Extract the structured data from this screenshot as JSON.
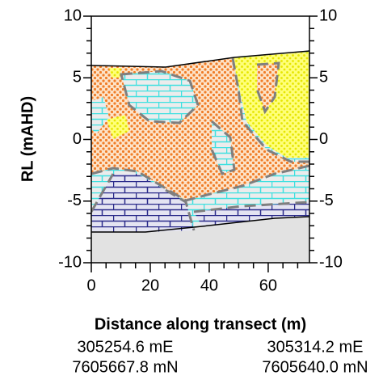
{
  "chart_data": {
    "type": "cross-section",
    "x_label": "Distance along transect (m)",
    "y_label": "RL (mAHD)",
    "xlim": [
      0,
      74
    ],
    "ylim": [
      -10,
      10
    ],
    "xticks": [
      0,
      20,
      40,
      60
    ],
    "x_minor_ticks": [
      5,
      10,
      15,
      25,
      30,
      35,
      45,
      50,
      55,
      65,
      70
    ],
    "yticks": [
      10,
      5,
      0,
      -5,
      -10
    ],
    "y2ticks": [
      10,
      5,
      0,
      -5,
      -10
    ],
    "y_minor_ticks": [
      9,
      8,
      7,
      6,
      4,
      3,
      2,
      1,
      -1,
      -2,
      -3,
      -4,
      -6,
      -7,
      -8,
      -9
    ],
    "start_location": [
      "305254.6 mE",
      "7605667.8 mN"
    ],
    "end_location": [
      "305314.2 mE",
      "7605640.0 mN"
    ]
  }
}
